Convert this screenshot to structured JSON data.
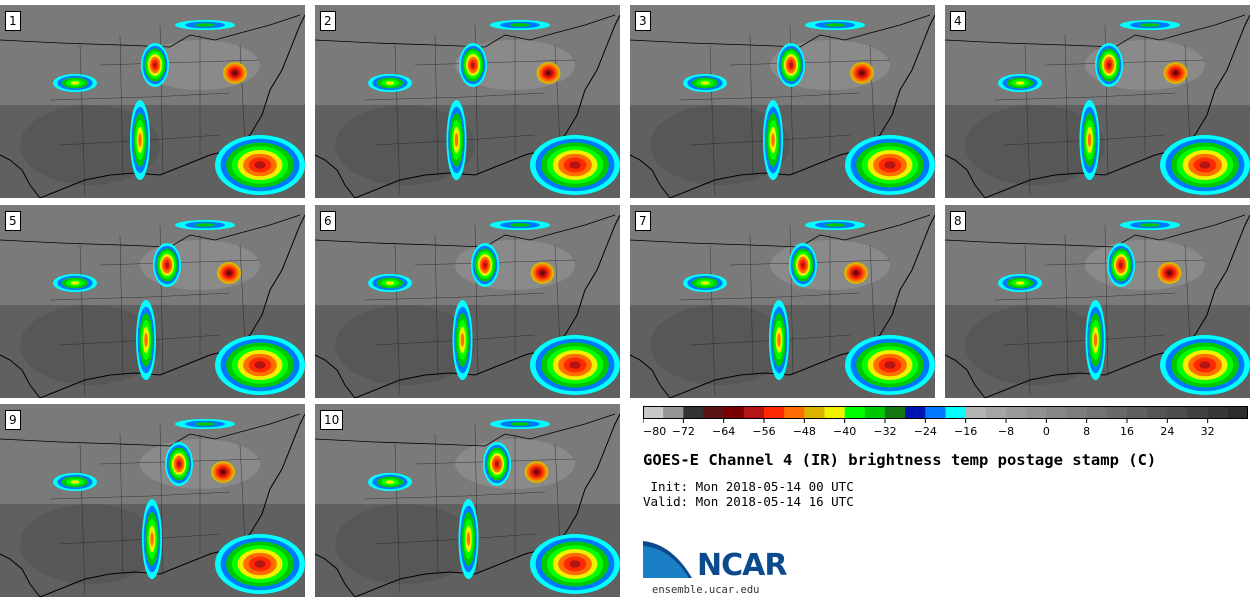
{
  "panels": [
    {
      "label": "1"
    },
    {
      "label": "2"
    },
    {
      "label": "3"
    },
    {
      "label": "4"
    },
    {
      "label": "5"
    },
    {
      "label": "6"
    },
    {
      "label": "7"
    },
    {
      "label": "8"
    },
    {
      "label": "9"
    },
    {
      "label": "10"
    }
  ],
  "colorbar": {
    "ticks": [
      "−80",
      "−72",
      "−64",
      "−56",
      "−48",
      "−40",
      "−32",
      "−24",
      "−16",
      "−8",
      "0",
      "8",
      "16",
      "24",
      "32"
    ],
    "colors": [
      "#c8c8c8",
      "#969696",
      "#323232",
      "#5a1414",
      "#780000",
      "#b41414",
      "#ff2800",
      "#ff6e00",
      "#dcb400",
      "#f0f000",
      "#00ff00",
      "#00c800",
      "#147814",
      "#0014b4",
      "#0078ff",
      "#00ffff",
      "#b4b4b4",
      "#a5a5a5",
      "#9b9b9b",
      "#919191",
      "#878787",
      "#7d7d7d",
      "#737373",
      "#696969",
      "#5f5f5f",
      "#555555",
      "#4b4b4b",
      "#414141",
      "#373737",
      "#2d2d2d"
    ]
  },
  "title": "GOES-E Channel 4 (IR) brightness temp postage stamp (C)",
  "init": " Init: Mon 2018-05-14 00 UTC",
  "valid": "Valid: Mon 2018-05-14 16 UTC",
  "logo": {
    "text": "NCAR",
    "url": "ensemble.ucar.edu"
  }
}
